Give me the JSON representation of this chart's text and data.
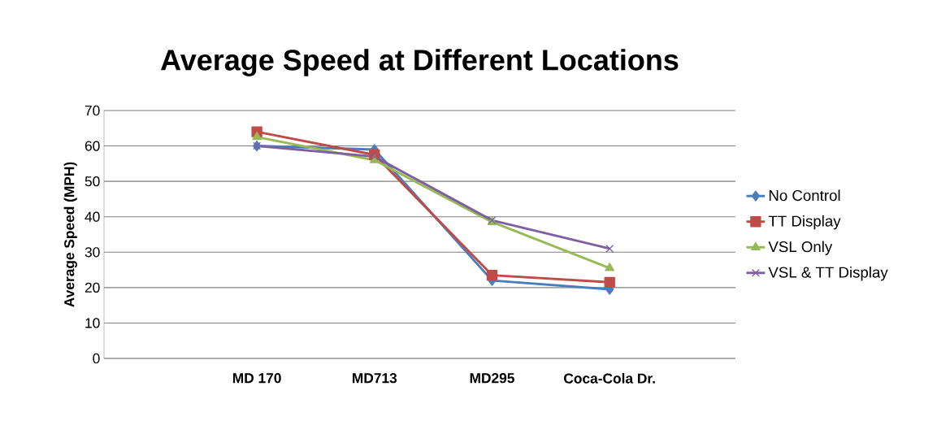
{
  "chart_data": {
    "type": "line",
    "title": "Average Speed at Different Locations",
    "ylabel": "Average Speed (MPH)",
    "categories": [
      "MD 170",
      "MD713",
      "MD295",
      "Coca-Cola Dr."
    ],
    "series": [
      {
        "name": "No Control",
        "color": "#4a7ebb",
        "marker": "diamond",
        "values": [
          60,
          59,
          22,
          19.5
        ]
      },
      {
        "name": "TT Display",
        "color": "#be4b48",
        "marker": "square",
        "values": [
          64,
          57.5,
          23.5,
          21.5
        ]
      },
      {
        "name": "VSL Only",
        "color": "#98b954",
        "marker": "triangle",
        "values": [
          62.5,
          56,
          38.5,
          25.5
        ]
      },
      {
        "name": "VSL & TT Display",
        "color": "#7d60a0",
        "marker": "cross",
        "values": [
          60,
          57,
          39,
          31
        ]
      }
    ],
    "ylim": [
      0,
      70
    ],
    "yticks": [
      0,
      10,
      20,
      30,
      40,
      50,
      60,
      70
    ],
    "grid": "y",
    "legend": "right",
    "line_style": "solid"
  }
}
